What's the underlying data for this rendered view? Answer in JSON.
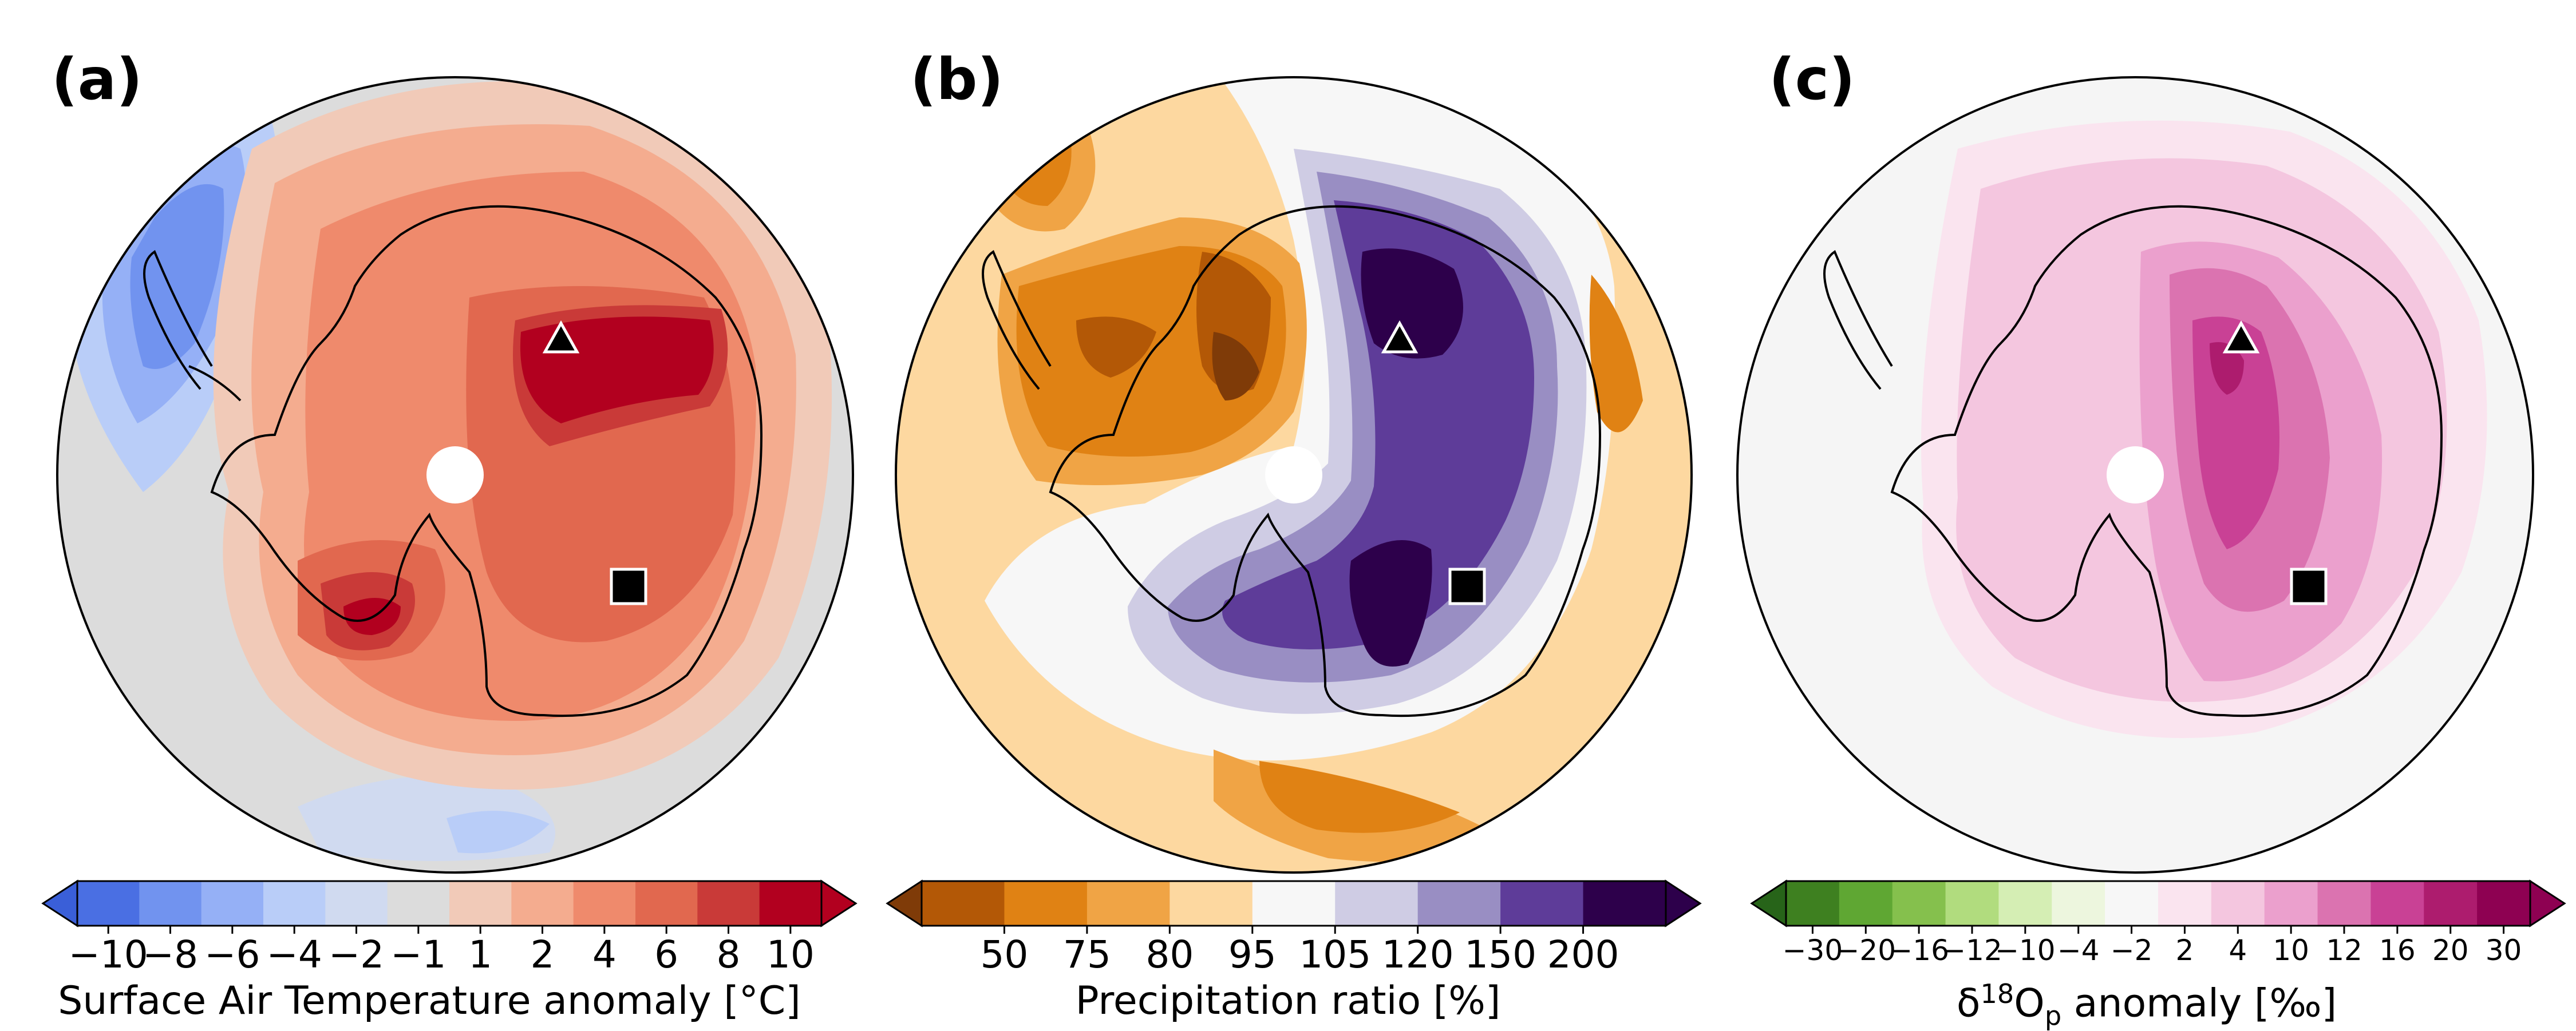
{
  "panels": [
    {
      "id": "a",
      "label": "(a)",
      "colorbar_label": "Surface Air Temperature anomaly [°C]",
      "ticks": [
        "−10",
        "−8",
        "−6",
        "−4",
        "−2",
        "−1",
        "1",
        "2",
        "4",
        "6",
        "8",
        "10"
      ],
      "colors": [
        "#4a6fe3",
        "#7193ef",
        "#95b0f6",
        "#b9cdf8",
        "#d0daf0",
        "#dcdcdc",
        "#f1cab8",
        "#f4ac8f",
        "#ef8a6c",
        "#e1684f",
        "#c93a38",
        "#b2001f"
      ],
      "under_color": "#3a5fd8",
      "over_color": "#b2001f",
      "tick_font": 66,
      "ocean_color": "#dcdcdc"
    },
    {
      "id": "b",
      "label": "(b)",
      "colorbar_label": "Precipitation ratio [%]",
      "ticks": [
        "50",
        "75",
        "80",
        "95",
        "105",
        "120",
        "150",
        "200"
      ],
      "colors": [
        "#b35806",
        "#e08214",
        "#f0a445",
        "#fdd8a0",
        "#f7f7f7",
        "#cfcce4",
        "#998ec3",
        "#5e3c99",
        "#2d004b"
      ],
      "under_color": "#7f3b08",
      "over_color": "#2d004b",
      "tick_font": 66,
      "ocean_color": "#fdd8a0"
    },
    {
      "id": "c",
      "label": "(c)",
      "colorbar_label_main": "δ",
      "colorbar_label_sup": "18",
      "colorbar_label_o": "O",
      "colorbar_label_sub": "p",
      "colorbar_label_rest": " anomaly [‰]",
      "ticks": [
        "−30",
        "−20",
        "−16",
        "−12",
        "−10",
        "−4",
        "−2",
        "2",
        "4",
        "10",
        "12",
        "16",
        "20",
        "30"
      ],
      "colors": [
        "#3e8020",
        "#5fa733",
        "#85c04d",
        "#b1dc7e",
        "#d5eeb4",
        "#edf6de",
        "#f7f7f7",
        "#fae4ef",
        "#f4c6df",
        "#eba0cd",
        "#db73b0",
        "#c94195",
        "#ad1c6e",
        "#8e0152"
      ],
      "under_color": "#276419",
      "over_color": "#8e0152",
      "tick_font": 50,
      "ocean_color": "#f5f5f5"
    }
  ],
  "markers": [
    "triangle",
    "square",
    "pole-hole"
  ]
}
